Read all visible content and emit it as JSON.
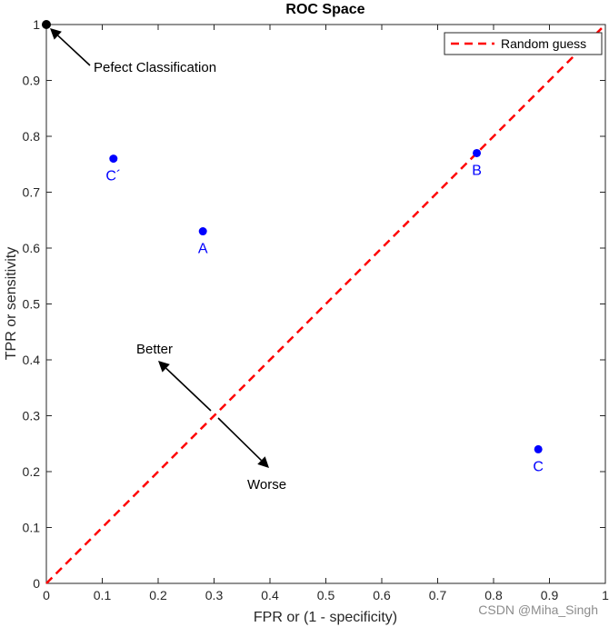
{
  "chart_data": {
    "type": "scatter",
    "title": "ROC Space",
    "xlabel": "FPR or (1 - specificity)",
    "ylabel": "TPR or sensitivity",
    "xlim": [
      0,
      1
    ],
    "ylim": [
      0,
      1
    ],
    "x_ticks": [
      "0",
      "0.1",
      "0.2",
      "0.3",
      "0.4",
      "0.5",
      "0.6",
      "0.7",
      "0.8",
      "0.9",
      "1"
    ],
    "y_ticks": [
      "0",
      "0.1",
      "0.2",
      "0.3",
      "0.4",
      "0.5",
      "0.6",
      "0.7",
      "0.8",
      "0.9",
      "1"
    ],
    "grid": false,
    "legend_position": "top-right",
    "points": [
      {
        "label": "A",
        "x": 0.28,
        "y": 0.63
      },
      {
        "label": "B",
        "x": 0.77,
        "y": 0.77
      },
      {
        "label": "C",
        "x": 0.88,
        "y": 0.24
      },
      {
        "label": "C´",
        "x": 0.12,
        "y": 0.76
      }
    ],
    "perfect_point": {
      "x": 0,
      "y": 1
    },
    "series": [
      {
        "name": "Random guess",
        "x": [
          0,
          1
        ],
        "y": [
          0,
          1
        ],
        "style": "dashed",
        "color": "#ff0000"
      }
    ],
    "annotations": {
      "perfect": "Pefect Classification",
      "better": "Better",
      "worse": "Worse"
    },
    "colors": {
      "points": "#0000ff",
      "random_line": "#ff0000",
      "perfect_point": "#000000"
    }
  },
  "watermark": "CSDN @Miha_Singh"
}
